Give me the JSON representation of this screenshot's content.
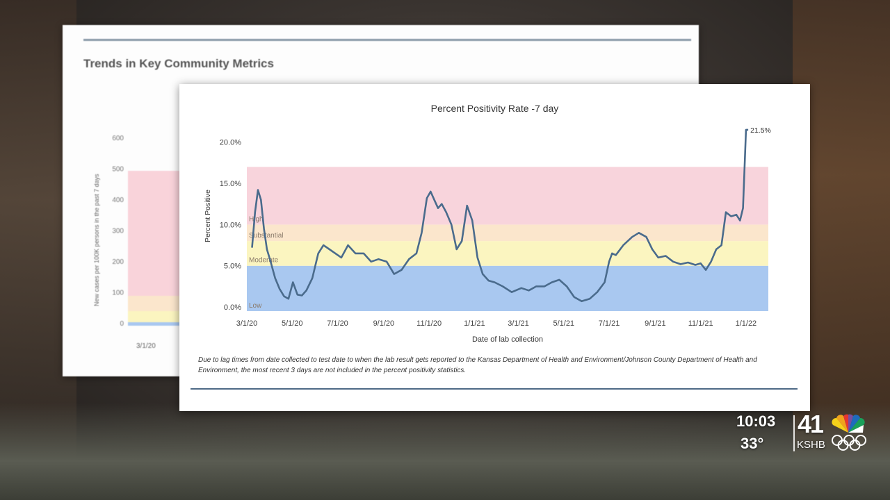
{
  "back_panel": {
    "title": "Trends in Key Community Metrics",
    "ylabel": "New cases per 100K persons in the past 7 days",
    "yticks": [
      "600",
      "500",
      "400",
      "300",
      "200",
      "100",
      "0"
    ],
    "xtick": "3/1/20"
  },
  "front_panel": {
    "footnote": "Due to lag times from date collected to test date to when the lab result gets reported to the Kansas Department of Health and Environment/Johnson County Department of Health and Environment, the most recent 3 days are not included in the percent positivity statistics."
  },
  "chart_data": {
    "type": "line",
    "title": "Percent Positivity Rate -7 day",
    "xlabel": "Date of lab collection",
    "ylabel": "Percent Positive",
    "yticks": [
      "0.0%",
      "5.0%",
      "10.0%",
      "15.0%",
      "20.0%"
    ],
    "ylim": [
      -0.5,
      22
    ],
    "xticks": [
      "3/1/20",
      "5/1/20",
      "7/1/20",
      "9/1/20",
      "11/1/20",
      "1/1/21",
      "3/1/21",
      "5/1/21",
      "7/1/21",
      "9/1/21",
      "11/1/21",
      "1/1/22"
    ],
    "xrange": [
      "2020-03-01",
      "2022-01-31"
    ],
    "bands": [
      {
        "label": "Low",
        "from": -0.5,
        "to": 5.0,
        "color": "#a9c8f0"
      },
      {
        "label": "Moderate",
        "from": 5.0,
        "to": 8.0,
        "color": "#fbf5c0"
      },
      {
        "label": "Substantial",
        "from": 8.0,
        "to": 10.0,
        "color": "#fbe6cc"
      },
      {
        "label": "High",
        "from": 10.0,
        "to": 17.0,
        "color": "#f8d4dc"
      }
    ],
    "end_label": "21.5%",
    "line_color": "#4a6b8c",
    "series": [
      {
        "x": [
          "2020-03-08",
          "2020-03-12",
          "2020-03-16",
          "2020-03-20",
          "2020-03-24",
          "2020-03-28",
          "2020-04-02",
          "2020-04-08",
          "2020-04-14",
          "2020-04-20",
          "2020-04-26",
          "2020-05-02",
          "2020-05-08",
          "2020-05-14",
          "2020-05-20",
          "2020-05-28",
          "2020-06-05",
          "2020-06-12",
          "2020-06-20",
          "2020-06-28",
          "2020-07-06",
          "2020-07-15",
          "2020-07-25",
          "2020-08-05",
          "2020-08-15",
          "2020-08-25",
          "2020-09-05",
          "2020-09-15",
          "2020-09-25",
          "2020-10-05",
          "2020-10-15",
          "2020-10-22",
          "2020-10-29",
          "2020-11-03",
          "2020-11-08",
          "2020-11-13",
          "2020-11-18",
          "2020-11-24",
          "2020-12-01",
          "2020-12-08",
          "2020-12-15",
          "2020-12-22",
          "2020-12-29",
          "2021-01-05",
          "2021-01-12",
          "2021-01-20",
          "2021-01-28",
          "2021-02-08",
          "2021-02-20",
          "2021-03-05",
          "2021-03-15",
          "2021-03-25",
          "2021-04-05",
          "2021-04-15",
          "2021-04-25",
          "2021-05-05",
          "2021-05-15",
          "2021-05-25",
          "2021-06-05",
          "2021-06-15",
          "2021-06-25",
          "2021-07-01",
          "2021-07-05",
          "2021-07-10",
          "2021-07-20",
          "2021-08-01",
          "2021-08-10",
          "2021-08-20",
          "2021-08-28",
          "2021-09-05",
          "2021-09-15",
          "2021-09-25",
          "2021-10-05",
          "2021-10-15",
          "2021-10-25",
          "2021-11-01",
          "2021-11-08",
          "2021-11-15",
          "2021-11-22",
          "2021-11-29",
          "2021-12-05",
          "2021-12-12",
          "2021-12-19",
          "2021-12-24",
          "2021-12-28",
          "2022-01-01",
          "2022-01-04"
        ],
        "y": [
          7.2,
          11.5,
          14.2,
          13.0,
          9.5,
          7.0,
          5.5,
          3.5,
          2.2,
          1.3,
          1.0,
          3.0,
          1.5,
          1.4,
          2.0,
          3.5,
          6.5,
          7.5,
          7.0,
          6.5,
          6.0,
          7.5,
          6.5,
          6.5,
          5.5,
          5.8,
          5.5,
          4.0,
          4.5,
          5.8,
          6.5,
          9.0,
          13.2,
          14.0,
          13.0,
          12.0,
          12.5,
          11.5,
          10.0,
          7.0,
          8.0,
          12.3,
          10.5,
          6.0,
          4.0,
          3.2,
          3.0,
          2.5,
          1.8,
          2.3,
          2.0,
          2.5,
          2.5,
          3.0,
          3.3,
          2.5,
          1.2,
          0.7,
          1.0,
          1.8,
          3.0,
          5.5,
          6.5,
          6.3,
          7.5,
          8.5,
          9.0,
          8.5,
          7.0,
          6.0,
          6.2,
          5.5,
          5.2,
          5.4,
          5.1,
          5.3,
          4.5,
          5.5,
          7.0,
          7.5,
          11.5,
          11.0,
          11.2,
          10.5,
          12.0,
          21.5,
          21.5
        ]
      }
    ]
  },
  "bug": {
    "time": "10:03",
    "temp": "33°",
    "channel": "41",
    "call": "KSHB"
  }
}
